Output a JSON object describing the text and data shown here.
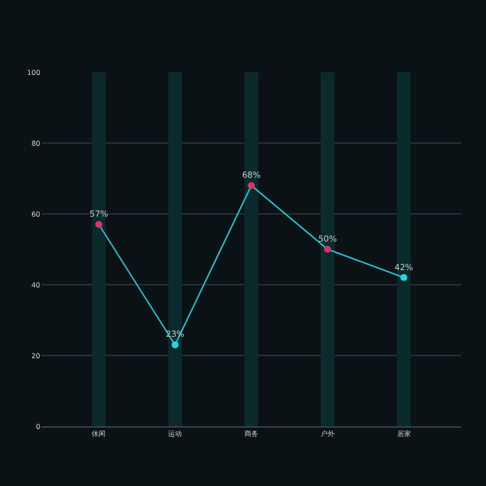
{
  "chart_data": {
    "type": "line",
    "categories": [
      "休闲",
      "运动",
      "商务",
      "户外",
      "居家"
    ],
    "series": [
      {
        "type": "bar",
        "color": "#0b2a2c",
        "values": [
          100,
          100,
          100,
          100,
          100
        ]
      },
      {
        "color": "#1fc8d0",
        "colors": [
          "#e0306a",
          "#1fd8e0",
          "#e0306a",
          "#e0306a",
          "#1fd8e0"
        ],
        "values": [
          57,
          23,
          68,
          50,
          42
        ],
        "value_labels": [
          "57%",
          "23%",
          "68%",
          "50%",
          "42%"
        ]
      }
    ],
    "ylim": [
      0,
      100
    ],
    "yticks": [
      0,
      20,
      40,
      60,
      80,
      100
    ],
    "grid": "y",
    "marker": "circle",
    "line_style": "solid"
  }
}
